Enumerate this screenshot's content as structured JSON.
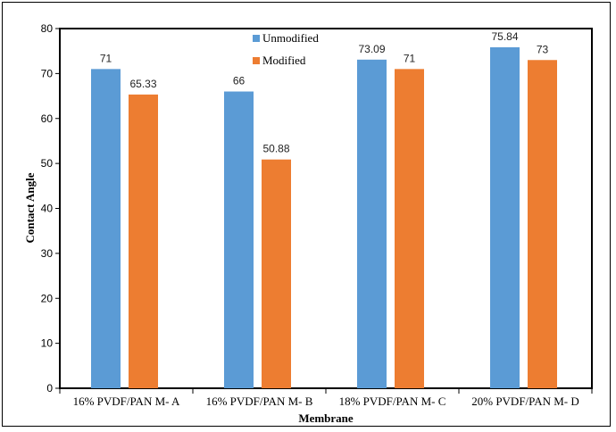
{
  "chart_data": {
    "type": "bar",
    "title": "",
    "xlabel": "Membrane",
    "ylabel": "Contact Angle",
    "ylim": [
      0,
      80
    ],
    "yticks": [
      0,
      10,
      20,
      30,
      40,
      50,
      60,
      70,
      80
    ],
    "categories": [
      "16% PVDF/PAN M- A",
      "16% PVDF/PAN M- B",
      "18% PVDF/PAN M- C",
      "20% PVDF/PAN M- D"
    ],
    "series": [
      {
        "name": "Unmodified",
        "color": "#5b9bd5",
        "values": [
          71,
          66,
          73.09,
          75.84
        ],
        "labels": [
          "71",
          "66",
          "73.09",
          "75.84"
        ]
      },
      {
        "name": "Modified",
        "color": "#ed7d31",
        "values": [
          65.33,
          50.88,
          71,
          73
        ],
        "labels": [
          "65.33",
          "50.88",
          "71",
          "73"
        ]
      }
    ],
    "legend_position": "top-center",
    "grid": false
  }
}
